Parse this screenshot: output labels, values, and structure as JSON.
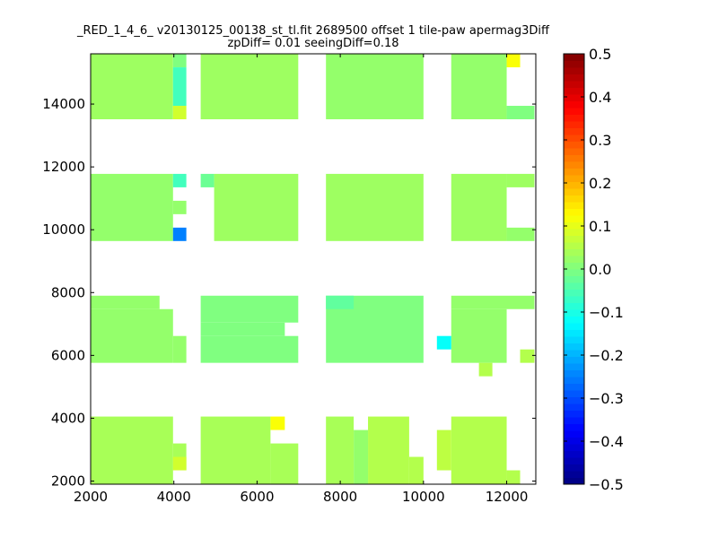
{
  "chart_data": {
    "type": "heatmap",
    "title": "_RED_1_4_6_ v20130125_00138_st_tl.fit 2689500 offset 1 tile-paw apermag3Diff",
    "subtitle": "zpDiff= 0.01 seeingDiff=0.18",
    "xlabel": "",
    "ylabel": "",
    "xlim": [
      2000,
      12700
    ],
    "ylim": [
      1900,
      15600
    ],
    "xticks": [
      "2000",
      "4000",
      "6000",
      "8000",
      "10000",
      "12000"
    ],
    "yticks": [
      "2000",
      "4000",
      "6000",
      "8000",
      "10000",
      "12000",
      "14000"
    ],
    "colormap": "jet",
    "clim": [
      -0.5,
      0.5
    ],
    "colorbar_ticks": [
      "0.5",
      "0.4",
      "0.3",
      "0.2",
      "0.1",
      "0.0",
      "−0.1",
      "−0.2",
      "−0.3",
      "−0.4",
      "−0.5"
    ],
    "regions": [
      {
        "x": [
          2000,
          3980
        ],
        "y": [
          13516,
          15600
        ],
        "v": 0.03
      },
      {
        "x": [
          3980,
          4300
        ],
        "y": [
          15170,
          15600
        ],
        "v": 0.0
      },
      {
        "x": [
          3980,
          4300
        ],
        "y": [
          13944,
          15170
        ],
        "v": -0.06
      },
      {
        "x": [
          3980,
          4300
        ],
        "y": [
          13516,
          13944
        ],
        "v": 0.08
      },
      {
        "x": [
          4645,
          6990
        ],
        "y": [
          13516,
          15600
        ],
        "v": 0.03
      },
      {
        "x": [
          7656,
          10000
        ],
        "y": [
          13516,
          15600
        ],
        "v": 0.02
      },
      {
        "x": [
          10667,
          12000
        ],
        "y": [
          13516,
          15600
        ],
        "v": 0.02
      },
      {
        "x": [
          12000,
          12323
        ],
        "y": [
          15170,
          15600
        ],
        "v": 0.12
      },
      {
        "x": [
          12000,
          12667
        ],
        "y": [
          13516,
          13944
        ],
        "v": 0.0
      },
      {
        "x": [
          2000,
          3980
        ],
        "y": [
          9640,
          11778
        ],
        "v": 0.02
      },
      {
        "x": [
          3980,
          4300
        ],
        "y": [
          11350,
          11778
        ],
        "v": -0.06
      },
      {
        "x": [
          3980,
          4300
        ],
        "y": [
          10495,
          10922
        ],
        "v": 0.02
      },
      {
        "x": [
          3980,
          4300
        ],
        "y": [
          9640,
          10067
        ],
        "v": -0.25
      },
      {
        "x": [
          4645,
          4968
        ],
        "y": [
          11350,
          11778
        ],
        "v": -0.02
      },
      {
        "x": [
          4968,
          6990
        ],
        "y": [
          9640,
          11778
        ],
        "v": 0.03
      },
      {
        "x": [
          7656,
          10000
        ],
        "y": [
          9640,
          11778
        ],
        "v": 0.03
      },
      {
        "x": [
          10667,
          12000
        ],
        "y": [
          9640,
          11778
        ],
        "v": 0.03
      },
      {
        "x": [
          12000,
          12667
        ],
        "y": [
          11350,
          11778
        ],
        "v": 0.03
      },
      {
        "x": [
          12000,
          12667
        ],
        "y": [
          9640,
          10067
        ],
        "v": 0.02
      },
      {
        "x": [
          2000,
          3656
        ],
        "y": [
          7473,
          7900
        ],
        "v": 0.02
      },
      {
        "x": [
          2000,
          3980
        ],
        "y": [
          5763,
          7473
        ],
        "v": 0.02
      },
      {
        "x": [
          3980,
          4300
        ],
        "y": [
          5763,
          6618
        ],
        "v": 0.02
      },
      {
        "x": [
          4645,
          6990
        ],
        "y": [
          7045,
          7900
        ],
        "v": 0.0
      },
      {
        "x": [
          4645,
          6667
        ],
        "y": [
          6618,
          7045
        ],
        "v": 0.0
      },
      {
        "x": [
          4645,
          6990
        ],
        "y": [
          5763,
          6618
        ],
        "v": 0.0
      },
      {
        "x": [
          7656,
          10000
        ],
        "y": [
          5763,
          7900
        ],
        "v": 0.0
      },
      {
        "x": [
          7656,
          8323
        ],
        "y": [
          7473,
          7900
        ],
        "v": -0.03
      },
      {
        "x": [
          10667,
          12667
        ],
        "y": [
          7473,
          7900
        ],
        "v": 0.02
      },
      {
        "x": [
          10667,
          12000
        ],
        "y": [
          5763,
          7473
        ],
        "v": 0.02
      },
      {
        "x": [
          12323,
          12667
        ],
        "y": [
          5763,
          6190
        ],
        "v": 0.05
      },
      {
        "x": [
          11333,
          11656
        ],
        "y": [
          5335,
          5763
        ],
        "v": 0.05
      },
      {
        "x": [
          10323,
          10667
        ],
        "y": [
          6190,
          6618
        ],
        "v": -0.12
      },
      {
        "x": [
          2000,
          3980
        ],
        "y": [
          1915,
          4053
        ],
        "v": 0.04
      },
      {
        "x": [
          3980,
          4300
        ],
        "y": [
          2342,
          3197
        ],
        "v": 0.04
      },
      {
        "x": [
          3980,
          4300
        ],
        "y": [
          2342,
          2770
        ],
        "v": 0.08
      },
      {
        "x": [
          4645,
          6323
        ],
        "y": [
          1915,
          4053
        ],
        "v": 0.04
      },
      {
        "x": [
          6323,
          6667
        ],
        "y": [
          3625,
          4053
        ],
        "v": 0.12
      },
      {
        "x": [
          6323,
          6990
        ],
        "y": [
          1915,
          3197
        ],
        "v": 0.04
      },
      {
        "x": [
          7656,
          8323
        ],
        "y": [
          1915,
          4053
        ],
        "v": 0.04
      },
      {
        "x": [
          8323,
          8667
        ],
        "y": [
          1915,
          3625
        ],
        "v": 0.02
      },
      {
        "x": [
          8667,
          9656
        ],
        "y": [
          1915,
          4053
        ],
        "v": 0.05
      },
      {
        "x": [
          9656,
          10000
        ],
        "y": [
          1915,
          2770
        ],
        "v": 0.05
      },
      {
        "x": [
          10667,
          12000
        ],
        "y": [
          1915,
          4053
        ],
        "v": 0.05
      },
      {
        "x": [
          10323,
          10667
        ],
        "y": [
          2342,
          3625
        ],
        "v": 0.06
      },
      {
        "x": [
          12000,
          12323
        ],
        "y": [
          1915,
          2342
        ],
        "v": 0.05
      }
    ]
  }
}
